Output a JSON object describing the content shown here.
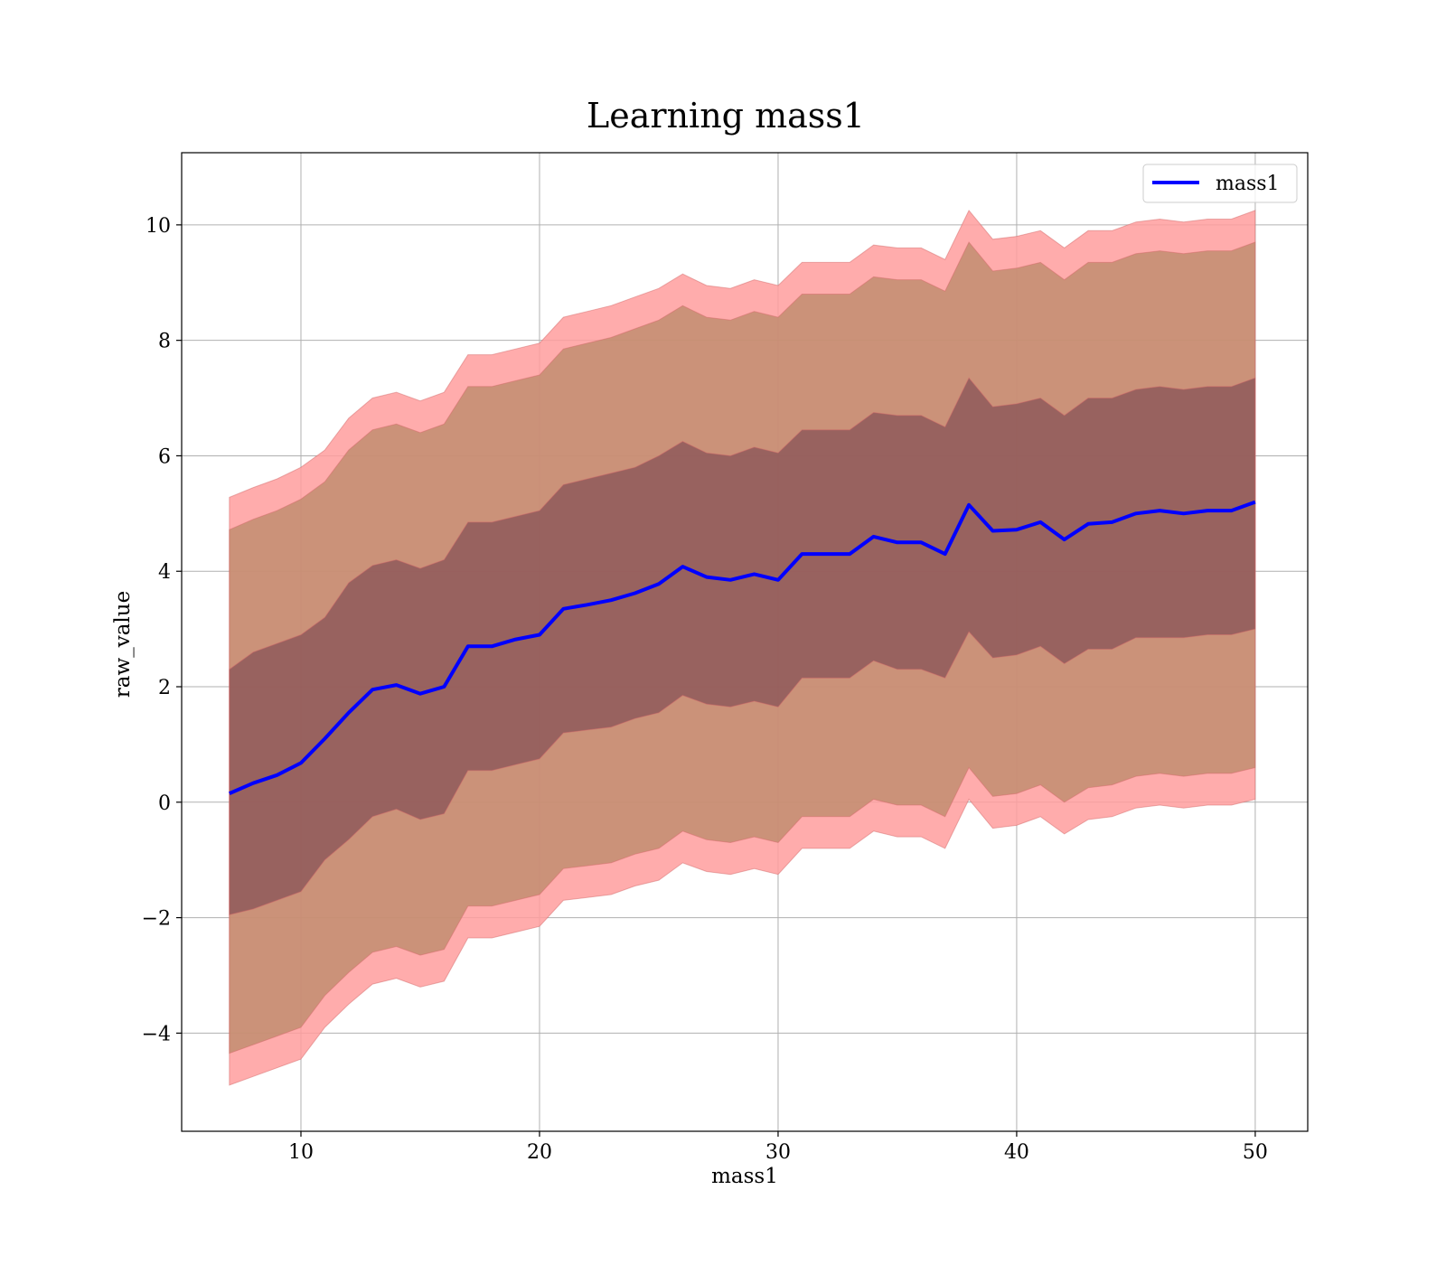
{
  "chart_data": {
    "type": "line",
    "title": "Learning mass1",
    "xlabel": "mass1",
    "ylabel": "raw_value",
    "xlim": [
      5,
      52.2
    ],
    "ylim": [
      -5.7,
      11.25
    ],
    "xticks": [
      10,
      20,
      30,
      40,
      50
    ],
    "xtick_labels": [
      "10",
      "20",
      "30",
      "40",
      "50"
    ],
    "yticks": [
      -4,
      -2,
      0,
      2,
      4,
      6,
      8,
      10
    ],
    "ytick_labels": [
      "−4",
      "−2",
      "0",
      "2",
      "4",
      "6",
      "8",
      "10"
    ],
    "grid": true,
    "legend": {
      "position": "top-right",
      "entries": [
        {
          "label": "mass1",
          "color": "#0000ff"
        }
      ]
    },
    "colors": {
      "line": "#0000ff",
      "band": "#ff0000",
      "inner_band": "#4b0820"
    },
    "x": [
      7,
      8,
      9,
      10,
      11,
      12,
      13,
      14,
      15,
      16,
      17,
      18,
      19,
      20,
      21,
      22,
      23,
      24,
      25,
      26,
      27,
      28,
      29,
      30,
      31,
      32,
      33,
      34,
      35,
      36,
      37,
      38,
      39,
      40,
      41,
      42,
      43,
      44,
      45,
      46,
      47,
      48,
      49,
      50
    ],
    "series": [
      {
        "name": "mass1",
        "values": [
          0.15,
          0.33,
          0.47,
          0.68,
          1.1,
          1.55,
          1.95,
          2.03,
          1.88,
          2.0,
          2.7,
          2.7,
          2.82,
          2.9,
          3.35,
          3.42,
          3.5,
          3.62,
          3.78,
          4.08,
          3.9,
          3.85,
          3.95,
          3.85,
          4.3,
          4.3,
          4.3,
          4.6,
          4.5,
          4.5,
          4.3,
          5.15,
          4.7,
          4.72,
          4.85,
          4.55,
          4.82,
          4.85,
          5.0,
          5.05,
          5.0,
          5.05,
          5.05,
          5.2
        ]
      },
      {
        "name": "",
        "values": [
          2.3,
          2.6,
          2.75,
          2.9,
          3.2,
          3.8,
          4.1,
          4.2,
          4.05,
          4.2,
          4.85,
          4.85,
          4.95,
          5.05,
          5.5,
          5.6,
          5.7,
          5.8,
          6.0,
          6.25,
          6.05,
          6.0,
          6.15,
          6.05,
          6.45,
          6.45,
          6.45,
          6.75,
          6.7,
          6.7,
          6.5,
          7.35,
          6.85,
          6.9,
          7.0,
          6.7,
          7.0,
          7.0,
          7.15,
          7.2,
          7.15,
          7.2,
          7.2,
          7.35
        ]
      },
      {
        "name": "",
        "values": [
          -1.95,
          -1.85,
          -1.7,
          -1.55,
          -1.0,
          -0.65,
          -0.25,
          -0.12,
          -0.3,
          -0.2,
          0.55,
          0.55,
          0.65,
          0.75,
          1.2,
          1.25,
          1.3,
          1.45,
          1.55,
          1.85,
          1.7,
          1.65,
          1.75,
          1.65,
          2.15,
          2.15,
          2.15,
          2.45,
          2.3,
          2.3,
          2.15,
          2.95,
          2.5,
          2.55,
          2.7,
          2.4,
          2.65,
          2.65,
          2.85,
          2.85,
          2.85,
          2.9,
          2.9,
          3.0
        ]
      },
      {
        "name": "",
        "values": [
          4.72,
          4.9,
          5.05,
          5.25,
          5.55,
          6.1,
          6.45,
          6.55,
          6.4,
          6.55,
          7.2,
          7.2,
          7.3,
          7.4,
          7.85,
          7.95,
          8.05,
          8.2,
          8.35,
          8.6,
          8.4,
          8.35,
          8.5,
          8.4,
          8.8,
          8.8,
          8.8,
          9.1,
          9.05,
          9.05,
          8.85,
          9.7,
          9.2,
          9.25,
          9.35,
          9.05,
          9.35,
          9.35,
          9.5,
          9.55,
          9.5,
          9.55,
          9.55,
          9.7
        ]
      },
      {
        "name": "",
        "values": [
          -4.35,
          -4.2,
          -4.05,
          -3.9,
          -3.35,
          -2.95,
          -2.6,
          -2.5,
          -2.65,
          -2.55,
          -1.8,
          -1.8,
          -1.7,
          -1.6,
          -1.15,
          -1.1,
          -1.05,
          -0.9,
          -0.8,
          -0.5,
          -0.65,
          -0.7,
          -0.6,
          -0.7,
          -0.25,
          -0.25,
          -0.25,
          0.05,
          -0.05,
          -0.05,
          -0.25,
          0.6,
          0.1,
          0.15,
          0.3,
          0.0,
          0.25,
          0.3,
          0.45,
          0.5,
          0.45,
          0.5,
          0.5,
          0.6
        ]
      },
      {
        "name": "",
        "values": [
          5.28,
          5.45,
          5.6,
          5.8,
          6.1,
          6.65,
          7.0,
          7.1,
          6.95,
          7.1,
          7.75,
          7.75,
          7.85,
          7.95,
          8.4,
          8.5,
          8.6,
          8.75,
          8.9,
          9.15,
          8.95,
          8.9,
          9.05,
          8.95,
          9.35,
          9.35,
          9.35,
          9.65,
          9.6,
          9.6,
          9.4,
          10.25,
          9.75,
          9.8,
          9.9,
          9.6,
          9.9,
          9.9,
          10.05,
          10.1,
          10.05,
          10.1,
          10.1,
          10.25
        ]
      },
      {
        "name": "",
        "values": [
          -4.9,
          -4.75,
          -4.6,
          -4.45,
          -3.9,
          -3.5,
          -3.15,
          -3.05,
          -3.2,
          -3.1,
          -2.35,
          -2.35,
          -2.25,
          -2.15,
          -1.7,
          -1.65,
          -1.6,
          -1.45,
          -1.35,
          -1.05,
          -1.2,
          -1.25,
          -1.15,
          -1.25,
          -0.8,
          -0.8,
          -0.8,
          -0.5,
          -0.6,
          -0.6,
          -0.8,
          0.05,
          -0.45,
          -0.4,
          -0.25,
          -0.55,
          -0.3,
          -0.25,
          -0.1,
          -0.05,
          -0.1,
          -0.05,
          -0.05,
          0.05
        ]
      }
    ]
  }
}
